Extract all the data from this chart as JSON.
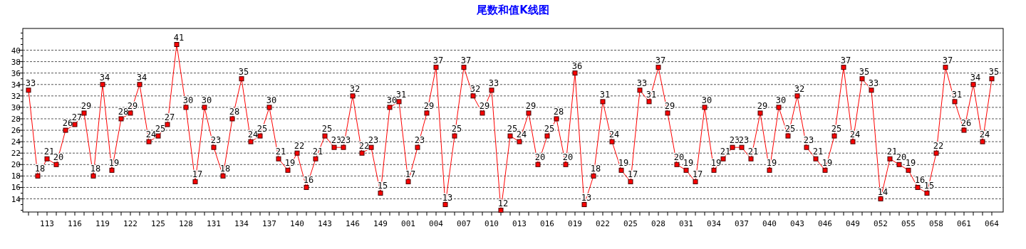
{
  "chart_data": {
    "type": "line",
    "title": "尾数和值K线图",
    "categories": [
      null,
      null,
      "113",
      null,
      null,
      "116",
      null,
      null,
      "119",
      null,
      null,
      "122",
      null,
      null,
      "125",
      null,
      null,
      "128",
      null,
      null,
      "131",
      null,
      null,
      "134",
      null,
      null,
      "137",
      null,
      null,
      "140",
      null,
      null,
      "143",
      null,
      null,
      "146",
      null,
      null,
      "149",
      null,
      null,
      "001",
      null,
      null,
      "004",
      null,
      null,
      "007",
      null,
      null,
      "010",
      null,
      null,
      "013",
      null,
      null,
      "016",
      null,
      null,
      "019",
      null,
      null,
      "022",
      null,
      null,
      "025",
      null,
      null,
      "028",
      null,
      null,
      "031",
      null,
      null,
      "034",
      null,
      null,
      "037",
      null,
      null,
      "040",
      null,
      null,
      "043",
      null,
      null,
      "046",
      null,
      null,
      "049",
      null,
      null,
      "052",
      null,
      null,
      "055",
      null,
      null,
      "058",
      null,
      null,
      "061",
      null,
      null,
      "064"
    ],
    "series": [
      {
        "color": "#ff0000",
        "values": [
          33,
          18,
          21,
          20,
          26,
          27,
          29,
          18,
          34,
          19,
          28,
          29,
          34,
          24,
          25,
          27,
          41,
          30,
          17,
          30,
          23,
          18,
          28,
          35,
          24,
          25,
          30,
          21,
          19,
          22,
          16,
          21,
          25,
          23,
          23,
          32,
          22,
          23,
          15,
          30,
          31,
          17,
          23,
          29,
          37,
          13,
          25,
          37,
          32,
          29,
          33,
          12,
          25,
          24,
          29,
          20,
          25,
          28,
          20,
          36,
          13,
          18,
          31,
          24,
          19,
          17,
          33,
          31,
          37,
          29,
          20,
          19,
          17,
          30,
          19,
          21,
          23,
          23,
          21,
          29,
          19,
          30,
          25,
          32,
          23,
          21,
          19,
          25,
          37,
          24,
          35,
          33,
          14,
          21,
          20,
          19,
          16,
          15,
          22,
          37,
          31,
          26,
          34,
          24,
          35
        ]
      }
    ],
    "ylim": [
      11.7,
      43.8
    ],
    "yticks": [
      {
        "value": 12,
        "label": null
      },
      {
        "value": 13,
        "label": null
      },
      14,
      {
        "value": 15,
        "label": null
      },
      16,
      {
        "value": 17,
        "label": null
      },
      18,
      {
        "value": 19,
        "label": null
      },
      20,
      {
        "value": 21,
        "label": null
      },
      22,
      {
        "value": 23,
        "label": null
      },
      24,
      {
        "value": 25,
        "label": null
      },
      26,
      {
        "value": 27,
        "label": null
      },
      28,
      {
        "value": 29,
        "label": null
      },
      30,
      {
        "value": 31,
        "label": null
      },
      32,
      {
        "value": 33,
        "label": null
      },
      34,
      {
        "value": 35,
        "label": null
      },
      36,
      {
        "value": 37,
        "label": null
      },
      38,
      {
        "value": 39,
        "label": null
      },
      40,
      {
        "value": 41,
        "label": null
      },
      {
        "value": 42,
        "label": null
      },
      {
        "value": 43,
        "label": null
      }
    ],
    "grid": "y",
    "marker": "square",
    "line_style": "solid",
    "data_labels": true
  }
}
